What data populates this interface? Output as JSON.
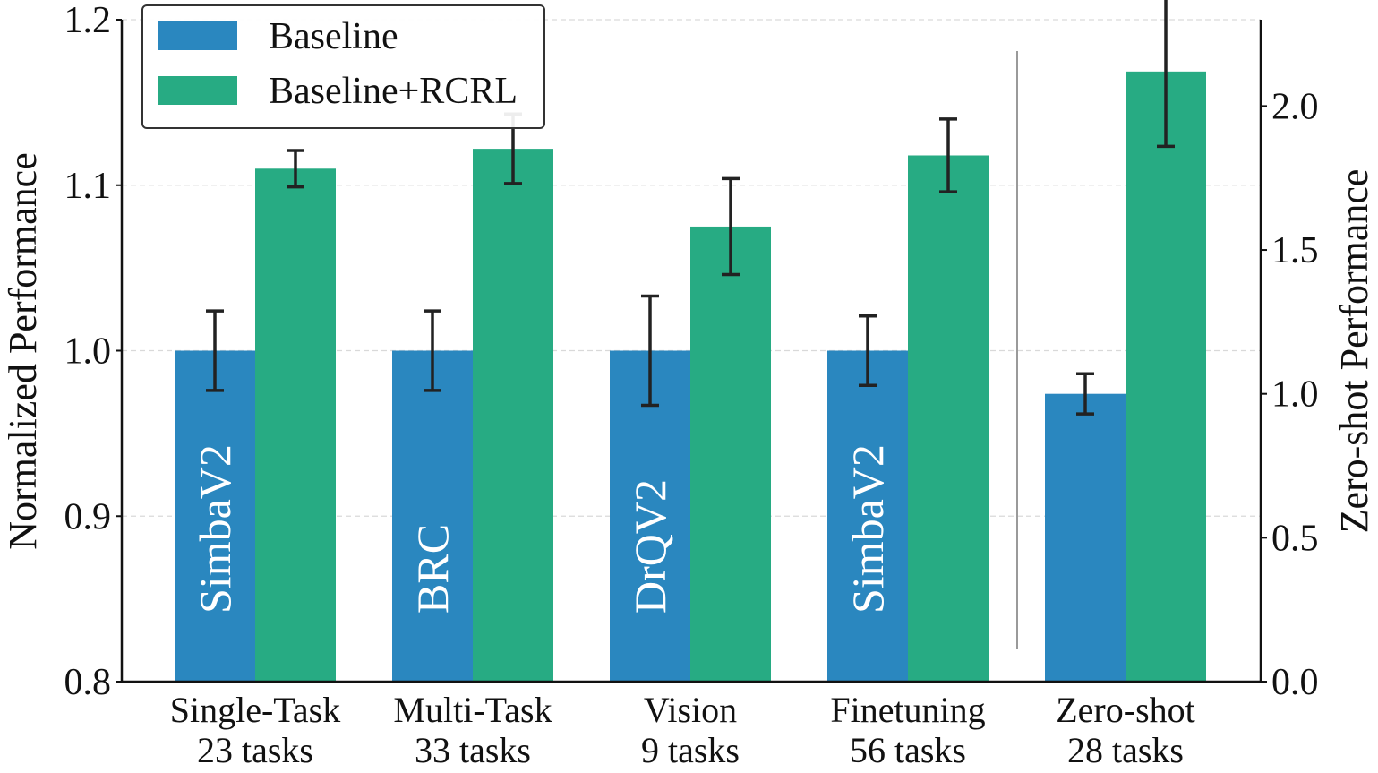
{
  "chart_data": {
    "type": "bar",
    "ylabel_left": "Normalized Performance",
    "ylabel_right": "Zero-shot Performance",
    "ylim_left": [
      0.8,
      1.2
    ],
    "yticks_left": [
      "0.8",
      "0.9",
      "1.0",
      "1.1",
      "1.2"
    ],
    "ylim_right": [
      0.0,
      2.3
    ],
    "yticks_right": [
      "0.0",
      "0.5",
      "1.0",
      "1.5",
      "2.0"
    ],
    "grid": "horizontal dashed",
    "legend_position": "top-left",
    "colors": {
      "baseline": "#2a87bf",
      "rcrl": "#27ab83"
    },
    "series": [
      {
        "name": "Baseline",
        "values": [
          1.0,
          1.0,
          1.0,
          1.0,
          1.0
        ],
        "errors": [
          0.024,
          0.024,
          0.033,
          0.021,
          0.07
        ]
      },
      {
        "name": "Baseline+RCRL",
        "values": [
          1.11,
          1.122,
          1.075,
          1.118,
          2.12
        ],
        "errors": [
          0.011,
          0.021,
          0.029,
          0.022,
          0.26
        ]
      }
    ],
    "categories": [
      {
        "line1": "Single-Task",
        "line2": "23 tasks",
        "baseline_label": "SimbaV2",
        "axis": "left"
      },
      {
        "line1": "Multi-Task",
        "line2": "33 tasks",
        "baseline_label": "BRC",
        "axis": "left"
      },
      {
        "line1": "Vision",
        "line2": "9 tasks",
        "baseline_label": "DrQV2",
        "axis": "left"
      },
      {
        "line1": "Finetuning",
        "line2": "56 tasks",
        "baseline_label": "SimbaV2",
        "axis": "left"
      },
      {
        "line1": "Zero-shot",
        "line2": "28 tasks",
        "baseline_label": "",
        "axis": "right"
      }
    ]
  }
}
